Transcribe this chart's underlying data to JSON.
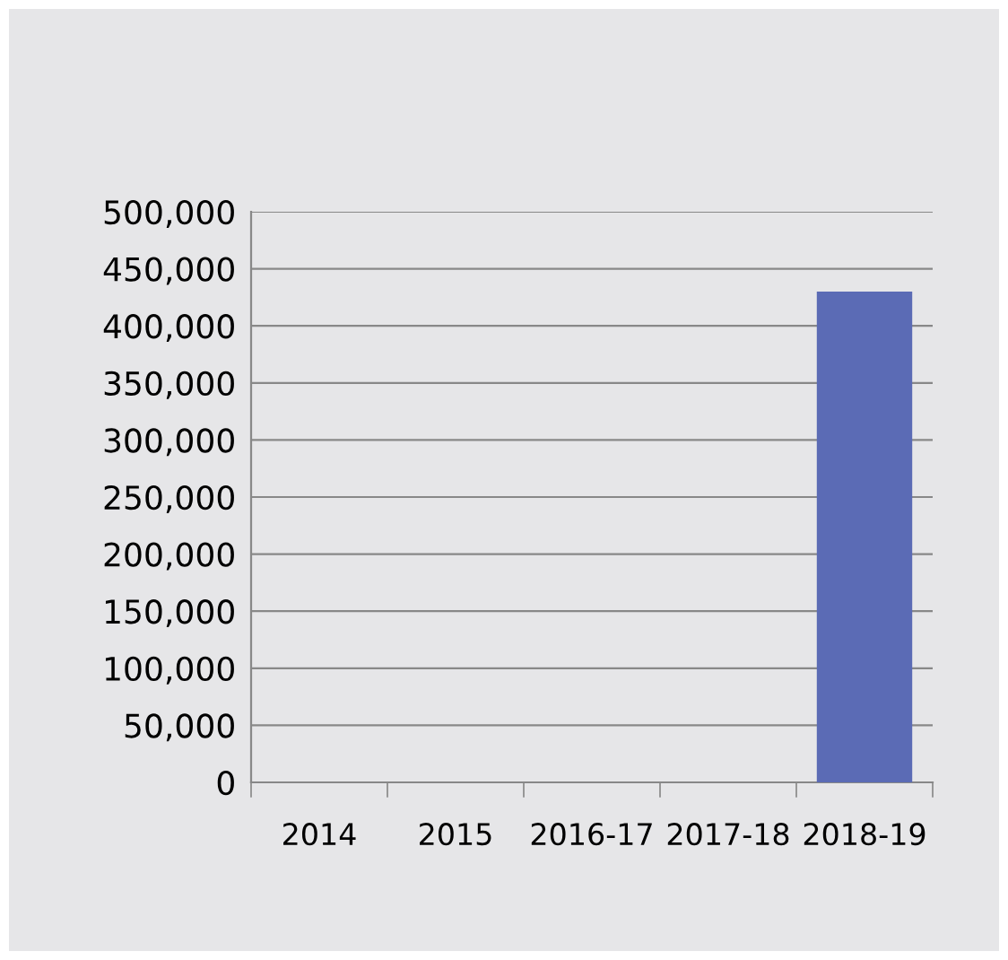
{
  "chart_data": {
    "type": "bar",
    "categories": [
      "2014",
      "2015",
      "2016-17",
      "2017-18",
      "2018-19"
    ],
    "values": [
      null,
      null,
      null,
      null,
      430000
    ],
    "color": "#5b6bb5",
    "ylim": [
      0,
      500000
    ],
    "yticks": [
      {
        "value": 0,
        "label": "0"
      },
      {
        "value": 50000,
        "label": "50,000"
      },
      {
        "value": 100000,
        "label": "100,000"
      },
      {
        "value": 150000,
        "label": "150,000"
      },
      {
        "value": 200000,
        "label": "200,000"
      },
      {
        "value": 250000,
        "label": "250,000"
      },
      {
        "value": 300000,
        "label": "300,000"
      },
      {
        "value": 350000,
        "label": "350,000"
      },
      {
        "value": 400000,
        "label": "400,000"
      },
      {
        "value": 450000,
        "label": "450,000"
      },
      {
        "value": 500000,
        "label": "500,000"
      }
    ],
    "grid": "y",
    "legend": false
  }
}
